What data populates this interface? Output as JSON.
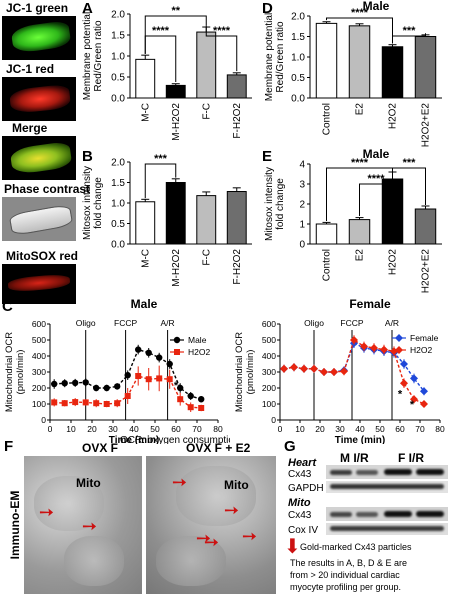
{
  "micro_labels": [
    "JC-1 green",
    "JC-1 red",
    "Merge",
    "Phase contrast",
    "MitoSOX red"
  ],
  "panel_letters": {
    "A": "A",
    "B": "B",
    "C": "C",
    "D": "D",
    "E": "E",
    "F": "F",
    "G": "G"
  },
  "colors": {
    "white": "#ffffff",
    "black": "#000000",
    "light_gray": "#bdbdbd",
    "dark_gray": "#6e6e6e",
    "male_line": "#000000",
    "h2o2": "#e8250f",
    "female": "#1f48d9",
    "arrow": "#cc1111"
  },
  "chart_data": [
    {
      "id": "A",
      "type": "bar",
      "ylabel": "Membrane potential\nRed/Green ratio",
      "ylim": [
        0,
        2.0
      ],
      "yticks": [
        "0.0",
        "0.5",
        "1.0",
        "1.5",
        "2.0"
      ],
      "categories": [
        "M-C",
        "M-H2O2",
        "F-C",
        "F-H2O2"
      ],
      "values": [
        0.92,
        0.3,
        1.57,
        0.55
      ],
      "errors": [
        0.1,
        0.04,
        0.12,
        0.05
      ],
      "fills": [
        "white",
        "black",
        "light_gray",
        "dark_gray"
      ],
      "significance": [
        "**",
        "****",
        "****"
      ]
    },
    {
      "id": "B",
      "type": "bar",
      "ylabel": "Mitosox intensity\nfold change",
      "ylim": [
        0,
        2.0
      ],
      "yticks": [
        "0.0",
        "0.5",
        "1.0",
        "1.5",
        "2.0"
      ],
      "categories": [
        "M-C",
        "M-H2O2",
        "F-C",
        "F-H2O2"
      ],
      "values": [
        1.03,
        1.5,
        1.18,
        1.28
      ],
      "errors": [
        0.06,
        0.09,
        0.09,
        0.09
      ],
      "fills": [
        "white",
        "black",
        "light_gray",
        "dark_gray"
      ],
      "significance": [
        "***"
      ]
    },
    {
      "id": "D",
      "type": "bar",
      "title": "Male",
      "ylabel": "Membrane potential\nRed/Green ratio",
      "ylim": [
        0,
        2.0
      ],
      "yticks": [
        "0.0",
        "0.5",
        "1.0",
        "1.5",
        "2.0"
      ],
      "categories": [
        "Control",
        "E2",
        "H2O2",
        "H2O2+E2"
      ],
      "values": [
        1.82,
        1.76,
        1.25,
        1.5
      ],
      "errors": [
        0.04,
        0.05,
        0.05,
        0.04
      ],
      "fills": [
        "white",
        "light_gray",
        "black",
        "dark_gray"
      ],
      "significance": [
        "****",
        "***"
      ]
    },
    {
      "id": "E",
      "type": "bar",
      "title": "Male",
      "ylabel": "Mitosox intensity\nfold change",
      "ylim": [
        0,
        4
      ],
      "yticks": [
        "0",
        "1",
        "2",
        "3",
        "4"
      ],
      "categories": [
        "Control",
        "E2",
        "H2O2",
        "H2O2+E2"
      ],
      "values": [
        1.0,
        1.22,
        3.25,
        1.75
      ],
      "errors": [
        0.08,
        0.1,
        0.35,
        0.15
      ],
      "fills": [
        "white",
        "light_gray",
        "black",
        "dark_gray"
      ],
      "significance": [
        "****",
        "****",
        "***"
      ]
    },
    {
      "id": "C-male",
      "type": "line",
      "title": "Male",
      "xlabel": "Time (min)",
      "ylabel": "Mitochondrial OCR\n(pmol/min)",
      "xlim": [
        0,
        80
      ],
      "ylim": [
        0,
        600
      ],
      "xticks": [
        "0",
        "10",
        "20",
        "30",
        "40",
        "50",
        "60",
        "70",
        "80"
      ],
      "yticks": [
        "0",
        "100",
        "200",
        "300",
        "400",
        "500",
        "600"
      ],
      "injections": [
        {
          "label": "Oligo",
          "x": 17
        },
        {
          "label": "FCCP",
          "x": 36
        },
        {
          "label": "A/R",
          "x": 56
        }
      ],
      "annotation": "OCR: oxygen consumption rate",
      "series": [
        {
          "name": "Male",
          "color": "male_line",
          "marker": "circle",
          "x": [
            2,
            7,
            12,
            17,
            22,
            27,
            32,
            37,
            42,
            47,
            52,
            57,
            62,
            67,
            72
          ],
          "y": [
            225,
            230,
            232,
            235,
            200,
            200,
            210,
            280,
            440,
            420,
            390,
            350,
            200,
            150,
            130
          ],
          "err": [
            30,
            25,
            25,
            25,
            20,
            20,
            20,
            30,
            30,
            30,
            30,
            30,
            30,
            25,
            20
          ]
        },
        {
          "name": "H2O2",
          "color": "h2o2",
          "marker": "square",
          "x": [
            2,
            7,
            12,
            17,
            22,
            27,
            32,
            37,
            42,
            47,
            52,
            57,
            62,
            67,
            72
          ],
          "y": [
            110,
            105,
            112,
            110,
            105,
            100,
            105,
            150,
            275,
            255,
            260,
            255,
            130,
            80,
            75
          ],
          "err": [
            25,
            20,
            25,
            20,
            25,
            20,
            25,
            50,
            60,
            70,
            80,
            60,
            40,
            30,
            20
          ]
        }
      ]
    },
    {
      "id": "C-female",
      "type": "line",
      "title": "Female",
      "xlabel": "Time (min)",
      "ylabel": "Mitochondrial OCR\n(pmol/min)",
      "xlim": [
        0,
        80
      ],
      "ylim": [
        0,
        600
      ],
      "xticks": [
        "0",
        "10",
        "20",
        "30",
        "40",
        "50",
        "60",
        "70",
        "80"
      ],
      "yticks": [
        "0",
        "100",
        "200",
        "300",
        "400",
        "500",
        "600"
      ],
      "injections": [
        {
          "label": "Oligo",
          "x": 17
        },
        {
          "label": "FCCP",
          "x": 36
        },
        {
          "label": "A/R",
          "x": 56
        }
      ],
      "series": [
        {
          "name": "Female",
          "color": "female",
          "marker": "diamond",
          "x": [
            2,
            7,
            12,
            17,
            22,
            27,
            32,
            37,
            42,
            47,
            52,
            57,
            62,
            67,
            72
          ],
          "y": [
            320,
            330,
            320,
            320,
            300,
            300,
            310,
            480,
            450,
            440,
            430,
            420,
            350,
            260,
            180
          ],
          "err": [
            25,
            25,
            25,
            25,
            25,
            25,
            25,
            30,
            30,
            30,
            30,
            30,
            30,
            30,
            25
          ]
        },
        {
          "name": "H2O2",
          "color": "h2o2",
          "marker": "diamond",
          "x": [
            2,
            7,
            12,
            17,
            22,
            27,
            32,
            37,
            42,
            47,
            52,
            57,
            62,
            67,
            72
          ],
          "y": [
            320,
            330,
            320,
            320,
            300,
            300,
            305,
            500,
            460,
            450,
            440,
            430,
            230,
            130,
            100
          ],
          "err": [
            25,
            25,
            25,
            25,
            25,
            25,
            25,
            30,
            30,
            30,
            30,
            30,
            30,
            25,
            20
          ]
        }
      ]
    }
  ],
  "c_male_sig": "*",
  "c_female_sig": [
    "*",
    "*"
  ],
  "em": {
    "side_label": "Immuno-EM",
    "left_title": "OVX F",
    "right_title": "OVX F + E2",
    "left_mito": "Mito",
    "right_mito": "Mito"
  },
  "blot": {
    "heart": "Heart",
    "mito": "Mito",
    "cx43_top": "Cx43",
    "gapdh": "GAPDH",
    "cx43_bottom": "Cx43",
    "coxiv": "Cox IV",
    "m_ir": "M I/R",
    "f_ir": "F I/R"
  },
  "notes": {
    "arrow_note": "Gold-marked Cx43 particles",
    "results_note_1": "The results in A, B, D & E are",
    "results_note_2": "from > 20 individual cardiac",
    "results_note_3": "myocyte profiling per group."
  }
}
